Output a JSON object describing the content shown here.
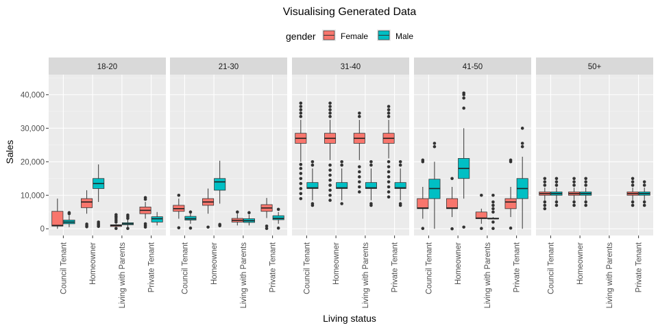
{
  "chart_data": {
    "type": "boxplot",
    "title": "Visualising Generated Data",
    "xlabel": "Living status",
    "ylabel": "Sales",
    "ylim": [
      -2000,
      46000
    ],
    "y_ticks": [
      0,
      10000,
      20000,
      30000,
      40000
    ],
    "y_tick_labels": [
      "0",
      "10,000",
      "20,000",
      "30,000",
      "40,000"
    ],
    "grid": true,
    "legend": {
      "title": "gender",
      "position": "top",
      "entries": [
        {
          "name": "Female",
          "color": "#F8766D"
        },
        {
          "name": "Male",
          "color": "#00BFC4"
        }
      ]
    },
    "categories": [
      "Council Tenant",
      "Homeowner",
      "Living with Parents",
      "Private Tenant"
    ],
    "facets": [
      {
        "label": "18-20",
        "boxes": [
          {
            "category": "Council Tenant",
            "group": "Female",
            "whisker_low": 0,
            "q1": 800,
            "median": 1000,
            "q3": 5200,
            "whisker_high": 9000,
            "outliers": []
          },
          {
            "category": "Council Tenant",
            "group": "Male",
            "whisker_low": 500,
            "q1": 1500,
            "median": 2000,
            "q3": 2600,
            "whisker_high": 4000,
            "outliers": [
              4500,
              4800
            ]
          },
          {
            "category": "Homeowner",
            "group": "Female",
            "whisker_low": 4500,
            "q1": 6300,
            "median": 8000,
            "q3": 9000,
            "whisker_high": 11500,
            "outliers": [
              600,
              900,
              1400
            ]
          },
          {
            "category": "Homeowner",
            "group": "Male",
            "whisker_low": 8000,
            "q1": 12000,
            "median": 13500,
            "q3": 15000,
            "whisker_high": 19200,
            "outliers": [
              700,
              1100,
              1500,
              2000
            ]
          },
          {
            "category": "Living with Parents",
            "group": "Female",
            "whisker_low": 700,
            "q1": 700,
            "median": 1000,
            "q3": 1200,
            "whisker_high": 1400,
            "outliers": [
              100,
              2000,
              2600,
              3200,
              3700,
              4200
            ]
          },
          {
            "category": "Living with Parents",
            "group": "Male",
            "whisker_low": 200,
            "q1": 1200,
            "median": 1500,
            "q3": 1800,
            "whisker_high": 2700,
            "outliers": [
              100,
              3100,
              3600,
              4100
            ]
          },
          {
            "category": "Private Tenant",
            "group": "Female",
            "whisker_low": 3000,
            "q1": 4500,
            "median": 5500,
            "q3": 6500,
            "whisker_high": 8000,
            "outliers": [
              500,
              1000,
              1500,
              8800,
              9300
            ]
          },
          {
            "category": "Private Tenant",
            "group": "Male",
            "whisker_low": 1000,
            "q1": 2000,
            "median": 3000,
            "q3": 3600,
            "whisker_high": 5000,
            "outliers": []
          }
        ]
      },
      {
        "label": "21-30",
        "boxes": [
          {
            "category": "Council Tenant",
            "group": "Female",
            "whisker_low": 3000,
            "q1": 5200,
            "median": 6000,
            "q3": 7000,
            "whisker_high": 9000,
            "outliers": [
              300,
              10000
            ]
          },
          {
            "category": "Council Tenant",
            "group": "Male",
            "whisker_low": 1500,
            "q1": 2600,
            "median": 3000,
            "q3": 3700,
            "whisker_high": 4900,
            "outliers": [
              200,
              5000
            ]
          },
          {
            "category": "Homeowner",
            "group": "Female",
            "whisker_low": 4500,
            "q1": 7000,
            "median": 8000,
            "q3": 9000,
            "whisker_high": 12000,
            "outliers": [
              500
            ]
          },
          {
            "category": "Homeowner",
            "group": "Male",
            "whisker_low": 7500,
            "q1": 11500,
            "median": 14000,
            "q3": 15000,
            "whisker_high": 20300,
            "outliers": [
              900,
              1300
            ]
          },
          {
            "category": "Living with Parents",
            "group": "Female",
            "whisker_low": 1000,
            "q1": 2000,
            "median": 2500,
            "q3": 3100,
            "whisker_high": 4500,
            "outliers": [
              5000
            ]
          },
          {
            "category": "Living with Parents",
            "group": "Male",
            "whisker_low": 1000,
            "q1": 1900,
            "median": 2400,
            "q3": 3000,
            "whisker_high": 4200,
            "outliers": [
              4800
            ]
          },
          {
            "category": "Private Tenant",
            "group": "Female",
            "whisker_low": 3200,
            "q1": 5200,
            "median": 6200,
            "q3": 7200,
            "whisker_high": 9200,
            "outliers": [
              100,
              800
            ]
          },
          {
            "category": "Private Tenant",
            "group": "Male",
            "whisker_low": 1500,
            "q1": 2700,
            "median": 3100,
            "q3": 3900,
            "whisker_high": 5000,
            "outliers": [
              200,
              5800
            ]
          }
        ]
      },
      {
        "label": "31-40",
        "boxes": [
          {
            "category": "Council Tenant",
            "group": "Female",
            "whisker_low": 20000,
            "q1": 25500,
            "median": 27000,
            "q3": 28500,
            "whisker_high": 32500,
            "outliers": [
              9000,
              10500,
              12000,
              13500,
              15000,
              16500,
              18000,
              19200,
              33500,
              34500,
              35500,
              36500,
              37500
            ]
          },
          {
            "category": "Council Tenant",
            "group": "Male",
            "whisker_low": 8500,
            "q1": 12000,
            "median": 12200,
            "q3": 13800,
            "whisker_high": 18000,
            "outliers": [
              7000,
              7500,
              19000,
              20000
            ]
          },
          {
            "category": "Homeowner",
            "group": "Female",
            "whisker_low": 20500,
            "q1": 25500,
            "median": 27000,
            "q3": 28500,
            "whisker_high": 32500,
            "outliers": [
              8500,
              10000,
              11500,
              13000,
              14500,
              16000,
              17500,
              19000,
              33500,
              34500,
              35500,
              36500,
              37500
            ]
          },
          {
            "category": "Homeowner",
            "group": "Male",
            "whisker_low": 8500,
            "q1": 12000,
            "median": 12200,
            "q3": 13800,
            "whisker_high": 18000,
            "outliers": [
              7500,
              19000,
              20000
            ]
          },
          {
            "category": "Living with Parents",
            "group": "Female",
            "whisker_low": 20500,
            "q1": 25500,
            "median": 27000,
            "q3": 28500,
            "whisker_high": 32500,
            "outliers": [
              11000,
              12500,
              14000,
              15500,
              17000,
              18500,
              33500,
              34500
            ]
          },
          {
            "category": "Living with Parents",
            "group": "Male",
            "whisker_low": 8500,
            "q1": 12000,
            "median": 12200,
            "q3": 13800,
            "whisker_high": 18000,
            "outliers": [
              7000,
              7500,
              19000,
              20000
            ]
          },
          {
            "category": "Private Tenant",
            "group": "Female",
            "whisker_low": 21000,
            "q1": 25500,
            "median": 27000,
            "q3": 28500,
            "whisker_high": 32500,
            "outliers": [
              9500,
              11000,
              12500,
              14000,
              15500,
              17000,
              18500,
              20000,
              33500,
              34500,
              35500,
              36500
            ]
          },
          {
            "category": "Private Tenant",
            "group": "Male",
            "whisker_low": 8500,
            "q1": 12000,
            "median": 12200,
            "q3": 13800,
            "whisker_high": 18000,
            "outliers": [
              7000,
              7500,
              19000,
              20000
            ]
          }
        ]
      },
      {
        "label": "41-50",
        "boxes": [
          {
            "category": "Council Tenant",
            "group": "Female",
            "whisker_low": 3000,
            "q1": 6000,
            "median": 6200,
            "q3": 9000,
            "whisker_high": 12500,
            "outliers": [
              100,
              20000,
              20500
            ]
          },
          {
            "category": "Council Tenant",
            "group": "Male",
            "whisker_low": 0,
            "q1": 9000,
            "median": 12000,
            "q3": 14800,
            "whisker_high": 20000,
            "outliers": [
              24500,
              25500
            ]
          },
          {
            "category": "Homeowner",
            "group": "Female",
            "whisker_low": 3500,
            "q1": 6000,
            "median": 6200,
            "q3": 9000,
            "whisker_high": 12500,
            "outliers": [
              0,
              15000
            ]
          },
          {
            "category": "Homeowner",
            "group": "Male",
            "whisker_low": 9000,
            "q1": 15000,
            "median": 18000,
            "q3": 21000,
            "whisker_high": 30000,
            "outliers": [
              500,
              36000,
              39000,
              40000,
              40500
            ]
          },
          {
            "category": "Living with Parents",
            "group": "Female",
            "whisker_low": 1500,
            "q1": 3000,
            "median": 3200,
            "q3": 5000,
            "whisker_high": 6000,
            "outliers": [
              100,
              10000
            ]
          },
          {
            "category": "Living with Parents",
            "group": "Male",
            "whisker_low": 3000,
            "q1": 3000,
            "median": 3000,
            "q3": 3200,
            "whisker_high": 3500,
            "outliers": [
              100,
              2000,
              5000,
              6000,
              7000,
              8000,
              10000
            ]
          },
          {
            "category": "Private Tenant",
            "group": "Female",
            "whisker_low": 3500,
            "q1": 6000,
            "median": 8000,
            "q3": 9000,
            "whisker_high": 12500,
            "outliers": [
              200,
              20000,
              20500
            ]
          },
          {
            "category": "Private Tenant",
            "group": "Male",
            "whisker_low": 0,
            "q1": 9000,
            "median": 12000,
            "q3": 15000,
            "whisker_high": 21500,
            "outliers": [
              24500,
              25500,
              30000
            ]
          }
        ]
      },
      {
        "label": "50+",
        "boxes": [
          {
            "category": "Council Tenant",
            "group": "Female",
            "whisker_low": 8500,
            "q1": 10000,
            "median": 10500,
            "q3": 11000,
            "whisker_high": 12300,
            "outliers": [
              6000,
              7000,
              8000,
              13000,
              14000,
              15000
            ]
          },
          {
            "category": "Council Tenant",
            "group": "Male",
            "whisker_low": 8500,
            "q1": 10000,
            "median": 10500,
            "q3": 11000,
            "whisker_high": 12300,
            "outliers": [
              7000,
              8000,
              13000,
              14000,
              15000
            ]
          },
          {
            "category": "Homeowner",
            "group": "Female",
            "whisker_low": 8500,
            "q1": 10000,
            "median": 10500,
            "q3": 11000,
            "whisker_high": 12300,
            "outliers": [
              7000,
              8000,
              13000,
              14000,
              15000
            ]
          },
          {
            "category": "Homeowner",
            "group": "Male",
            "whisker_low": 8500,
            "q1": 10000,
            "median": 10500,
            "q3": 11000,
            "whisker_high": 12300,
            "outliers": [
              7000,
              8000,
              13000,
              14000,
              15000
            ]
          },
          {
            "category": "Private Tenant",
            "group": "Female",
            "whisker_low": 8500,
            "q1": 10000,
            "median": 10500,
            "q3": 11000,
            "whisker_high": 12300,
            "outliers": [
              7000,
              8000,
              13000,
              14000,
              15000
            ]
          },
          {
            "category": "Private Tenant",
            "group": "Male",
            "whisker_low": 8500,
            "q1": 10000,
            "median": 10500,
            "q3": 11000,
            "whisker_high": 12300,
            "outliers": [
              7000,
              8000,
              13000,
              14000
            ]
          }
        ]
      }
    ]
  }
}
